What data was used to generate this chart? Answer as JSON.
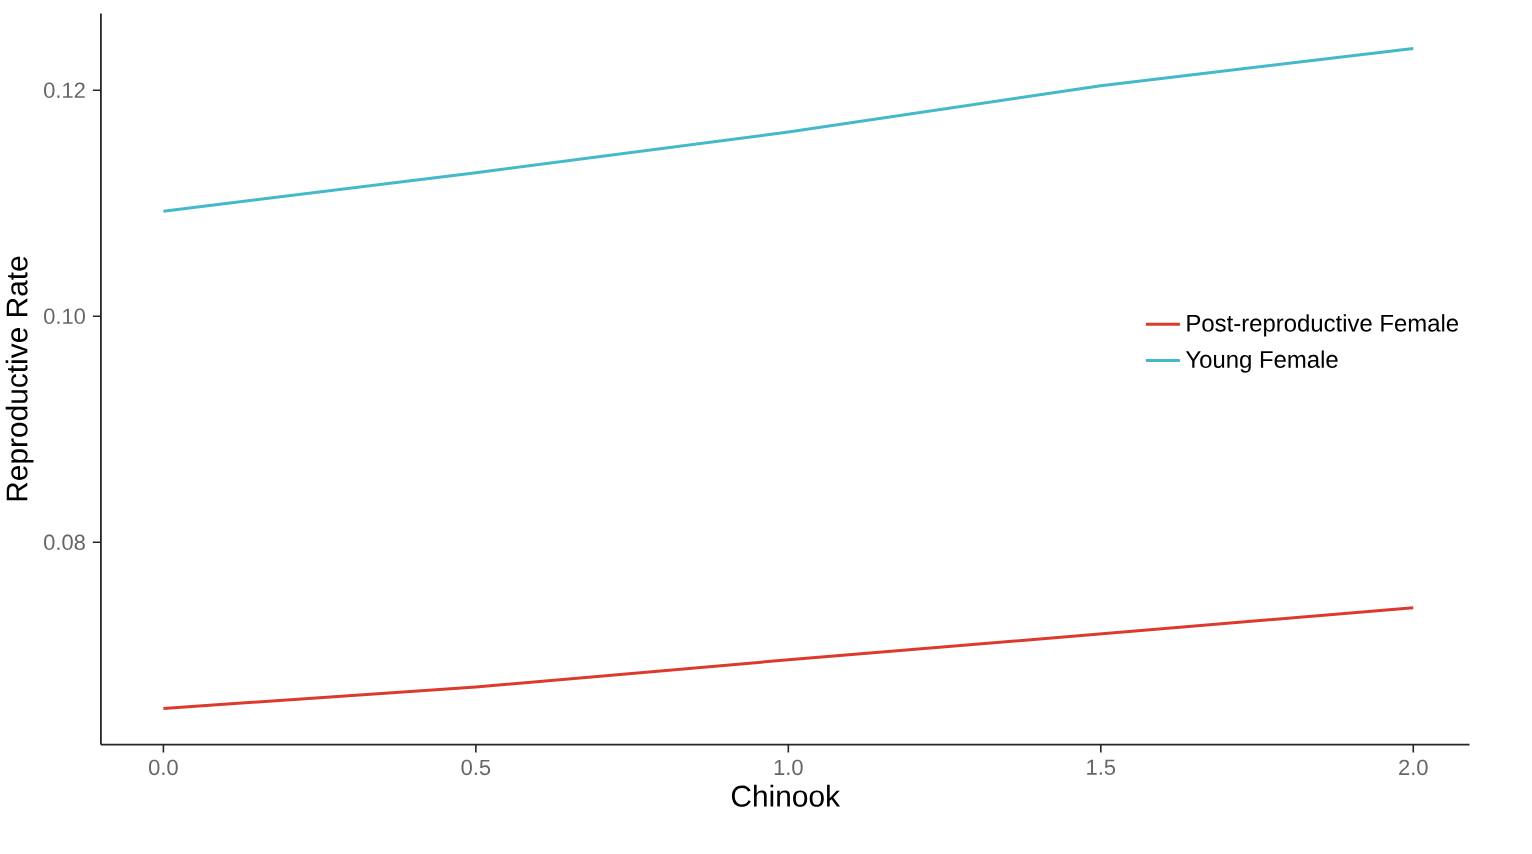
{
  "chart_data": {
    "type": "line",
    "xlabel": "Chinook",
    "ylabel": "Reproductive Rate",
    "x": [
      0,
      0.5,
      1,
      1.5,
      2
    ],
    "series": [
      {
        "name": "Post-reproductive Female",
        "color": "#dc3a2c",
        "values": [
          0.0653,
          0.0672,
          0.0696,
          0.0719,
          0.0742
        ]
      },
      {
        "name": "Young Female",
        "color": "#44b9c9",
        "values": [
          0.1093,
          0.1127,
          0.1163,
          0.1204,
          0.1237
        ]
      }
    ],
    "xlim": [
      -0.1,
      2.09
    ],
    "ylim": [
      0.0621,
      0.1268
    ],
    "xticks": [
      {
        "value": 0,
        "label": "0.0"
      },
      {
        "value": 0.5,
        "label": "0.5"
      },
      {
        "value": 1,
        "label": "1.0"
      },
      {
        "value": 1.5,
        "label": "1.5"
      },
      {
        "value": 2,
        "label": "2.0"
      }
    ],
    "yticks": [
      {
        "value": 0.08,
        "label": "0.08"
      },
      {
        "value": 0.1,
        "label": "0.10"
      },
      {
        "value": 0.12,
        "label": "0.12"
      }
    ],
    "grid": false,
    "legend": "right",
    "marker": "none",
    "line_style": "solid"
  }
}
